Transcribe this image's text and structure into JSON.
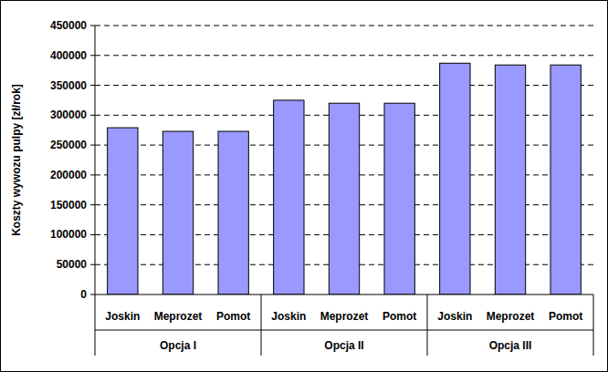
{
  "chart_data": {
    "type": "bar",
    "y_label": "Koszty wywozu pulpy [zł/rok]",
    "categories": [
      "Joskin",
      "Meprozet",
      "Pomot",
      "Joskin",
      "Meprozet",
      "Pomot",
      "Joskin",
      "Meprozet",
      "Pomot"
    ],
    "groups": [
      "Opcja I",
      "Opcja II",
      "Opcja III"
    ],
    "values": [
      279000,
      273000,
      273000,
      325000,
      320000,
      320000,
      387000,
      384000,
      384000
    ],
    "color": "#9999ff",
    "ylim": [
      0,
      450000
    ],
    "yticks": [
      0,
      50000,
      100000,
      150000,
      200000,
      250000,
      300000,
      350000,
      400000,
      450000
    ],
    "grid": true
  }
}
